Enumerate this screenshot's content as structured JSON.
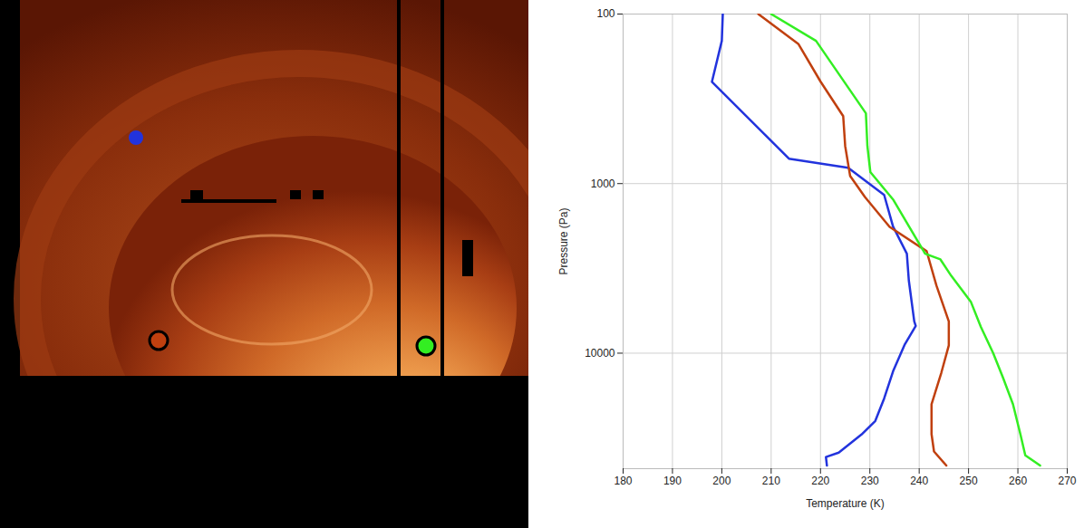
{
  "chart_data": {
    "type": "line",
    "x_label": "Temperature (K)",
    "y_label": "Pressure (Pa)",
    "xlim": [
      180,
      270
    ],
    "xticks": [
      180,
      190,
      200,
      210,
      220,
      230,
      240,
      250,
      260,
      270
    ],
    "ylim": [
      100,
      48000
    ],
    "yticks": [
      100,
      1000,
      10000
    ],
    "log": "y",
    "grid": true,
    "series": [
      {
        "color": "#2233dd",
        "x": [
          200.2,
          200.0,
          198.0,
          213.6,
          225.6,
          232.9,
          234.7,
          237.5,
          237.9,
          239.0,
          239.3,
          237.1,
          234.7,
          232.9,
          231.1,
          228.3,
          223.7,
          221.1,
          221.3
        ],
        "y": [
          100,
          144,
          251,
          713,
          807,
          1166,
          1790,
          2590,
          3730,
          6500,
          6900,
          8850,
          12800,
          18500,
          25100,
          30200,
          38600,
          41000,
          46000
        ]
      },
      {
        "color": "#c0400f",
        "x": [
          207.4,
          215.5,
          220.0,
          224.6,
          225.0,
          226.0,
          229.0,
          234.0,
          241.5,
          243.5,
          246.0,
          246.0,
          244.5,
          242.5,
          242.5,
          243.0,
          245.5
        ],
        "y": [
          100,
          150,
          250,
          400,
          600,
          900,
          1200,
          1800,
          2500,
          4000,
          6500,
          9000,
          13000,
          20000,
          30000,
          38000,
          46000
        ]
      },
      {
        "color": "#33ee22",
        "x": [
          210.0,
          219.1,
          229.2,
          229.5,
          230.1,
          234.7,
          241.2,
          244.3,
          246.5,
          250.5,
          252.5,
          255.0,
          257.0,
          259.0,
          260.5,
          261.5,
          264.5
        ],
        "y": [
          100,
          144,
          385,
          600,
          855,
          1240,
          2590,
          2800,
          3500,
          5000,
          7000,
          10000,
          14000,
          20000,
          30000,
          40000,
          46000
        ]
      }
    ]
  }
}
